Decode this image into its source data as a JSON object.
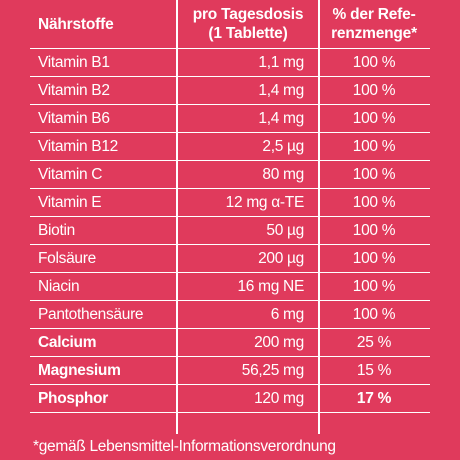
{
  "table": {
    "header": {
      "name": "Nährstoffe",
      "dose_line1": "pro Tagesdosis",
      "dose_line2": "(1 Tablette)",
      "ref_line1": "% der Refe-",
      "ref_line2": "renzmenge*"
    },
    "rows": [
      {
        "name": "Vitamin B1",
        "dose": "1,1 mg",
        "ref": "100 %"
      },
      {
        "name": "Vitamin B2",
        "dose": "1,4 mg",
        "ref": "100 %"
      },
      {
        "name": "Vitamin B6",
        "dose": "1,4 mg",
        "ref": "100 %"
      },
      {
        "name": "Vitamin B12",
        "dose": "2,5 µg",
        "ref": "100 %"
      },
      {
        "name": "Vitamin C",
        "dose": "80 mg",
        "ref": "100 %"
      },
      {
        "name": "Vitamin E",
        "dose": "12 mg α-TE",
        "ref": "100 %"
      },
      {
        "name": "Biotin",
        "dose": "50 µg",
        "ref": "100 %"
      },
      {
        "name": "Folsäure",
        "dose": "200 µg",
        "ref": "100 %"
      },
      {
        "name": "Niacin",
        "dose": "16 mg NE",
        "ref": "100 %"
      },
      {
        "name": "Pantothensäure",
        "dose": "6 mg",
        "ref": "100 %"
      },
      {
        "name": "Calcium",
        "dose": "200 mg",
        "ref": "25 %"
      },
      {
        "name": "Magnesium",
        "dose": "56,25 mg",
        "ref": "15 %"
      },
      {
        "name": "Phosphor",
        "dose": "120 mg",
        "ref": "17 %"
      }
    ]
  },
  "footnote": "*gemäß Lebensmittel-Informationsverordnung"
}
